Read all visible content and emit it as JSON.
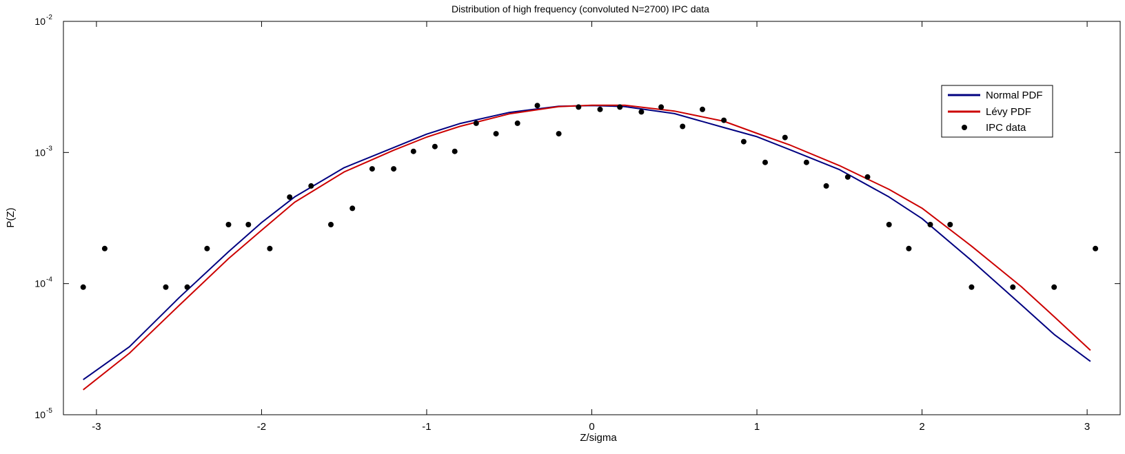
{
  "chart_data": {
    "type": "scatter",
    "title": "Distribution of high frequency (convoluted N=2700) IPC data",
    "xlabel": "Z/sigma",
    "ylabel": "P(Z)",
    "xlim": [
      -3.2,
      3.2
    ],
    "ylim": [
      1e-05,
      0.01
    ],
    "yscale": "log",
    "x_ticks": [
      -3,
      -2,
      -1,
      0,
      1,
      2,
      3
    ],
    "x_tick_labels": [
      "-3",
      "-2",
      "-1",
      "0",
      "1",
      "2",
      "3"
    ],
    "y_ticks": [
      {
        "value": 1e-05,
        "base": "10",
        "exp": "-5"
      },
      {
        "value": 0.0001,
        "base": "10",
        "exp": "-4"
      },
      {
        "value": 0.001,
        "base": "10",
        "exp": "-3"
      },
      {
        "value": 0.01,
        "base": "10",
        "exp": "-2"
      }
    ],
    "legend": {
      "position": "top-right",
      "entries": [
        {
          "label": "Normal PDF",
          "color": "#000080",
          "kind": "line"
        },
        {
          "label": "Lévy PDF",
          "color": "#cc0000",
          "kind": "line"
        },
        {
          "label": "IPC data",
          "color": "#000000",
          "kind": "marker"
        }
      ]
    },
    "series": [
      {
        "name": "Normal PDF",
        "color": "#000080",
        "kind": "line",
        "x": [
          -3.08,
          -2.8,
          -2.5,
          -2.2,
          -2.0,
          -1.8,
          -1.5,
          -1.2,
          -1.0,
          -0.8,
          -0.5,
          -0.2,
          0.0,
          0.2,
          0.5,
          0.8,
          1.0,
          1.2,
          1.5,
          1.8,
          2.0,
          2.3,
          2.6,
          2.8,
          3.02
        ],
        "y": [
          1.85e-05,
          3.3e-05,
          7.8e-05,
          0.000175,
          0.000292,
          0.000458,
          0.000766,
          0.00109,
          0.00138,
          0.00166,
          0.00202,
          0.00225,
          0.00228,
          0.00224,
          0.00198,
          0.00155,
          0.00132,
          0.00105,
          0.00074,
          0.000458,
          0.000313,
          0.00015,
          6.9e-05,
          4.1e-05,
          2.55e-05
        ]
      },
      {
        "name": "Lévy PDF",
        "color": "#cc0000",
        "kind": "line",
        "x": [
          -3.08,
          -2.8,
          -2.5,
          -2.2,
          -2.0,
          -1.8,
          -1.5,
          -1.2,
          -1.0,
          -0.8,
          -0.5,
          -0.2,
          0.0,
          0.2,
          0.5,
          0.8,
          1.0,
          1.2,
          1.5,
          1.8,
          2.0,
          2.3,
          2.6,
          2.8,
          3.02
        ],
        "y": [
          1.55e-05,
          2.95e-05,
          6.8e-05,
          0.000155,
          0.000255,
          0.000417,
          0.00071,
          0.00104,
          0.00131,
          0.00158,
          0.00197,
          0.00224,
          0.00229,
          0.00229,
          0.00207,
          0.00173,
          0.0014,
          0.00114,
          0.000794,
          0.000523,
          0.000376,
          0.000193,
          9.5e-05,
          5.6e-05,
          3.1e-05
        ]
      },
      {
        "name": "IPC data",
        "color": "#000000",
        "kind": "scatter",
        "x": [
          -3.08,
          -2.95,
          -2.58,
          -2.45,
          -2.33,
          -2.2,
          -2.08,
          -1.95,
          -1.83,
          -1.7,
          -1.58,
          -1.45,
          -1.33,
          -1.2,
          -1.08,
          -0.95,
          -0.83,
          -0.7,
          -0.58,
          -0.45,
          -0.33,
          -0.2,
          -0.08,
          0.05,
          0.17,
          0.3,
          0.42,
          0.55,
          0.67,
          0.8,
          0.92,
          1.05,
          1.17,
          1.3,
          1.42,
          1.55,
          1.67,
          1.8,
          1.92,
          2.05,
          2.17,
          2.3,
          2.55,
          2.8,
          3.05
        ],
        "y": [
          9.4e-05,
          0.000185,
          9.4e-05,
          9.4e-05,
          0.000185,
          0.000282,
          0.000282,
          0.000185,
          0.000457,
          0.000556,
          0.000282,
          0.000375,
          0.00075,
          0.00075,
          0.00102,
          0.00111,
          0.00102,
          0.00167,
          0.00139,
          0.00167,
          0.00228,
          0.00139,
          0.00222,
          0.00213,
          0.00222,
          0.00204,
          0.00222,
          0.00158,
          0.00213,
          0.00176,
          0.00121,
          0.00084,
          0.0013,
          0.00084,
          0.000556,
          0.00065,
          0.00065,
          0.000282,
          0.000185,
          0.000282,
          0.000282,
          9.4e-05,
          9.4e-05,
          9.4e-05,
          0.000185
        ]
      }
    ]
  }
}
